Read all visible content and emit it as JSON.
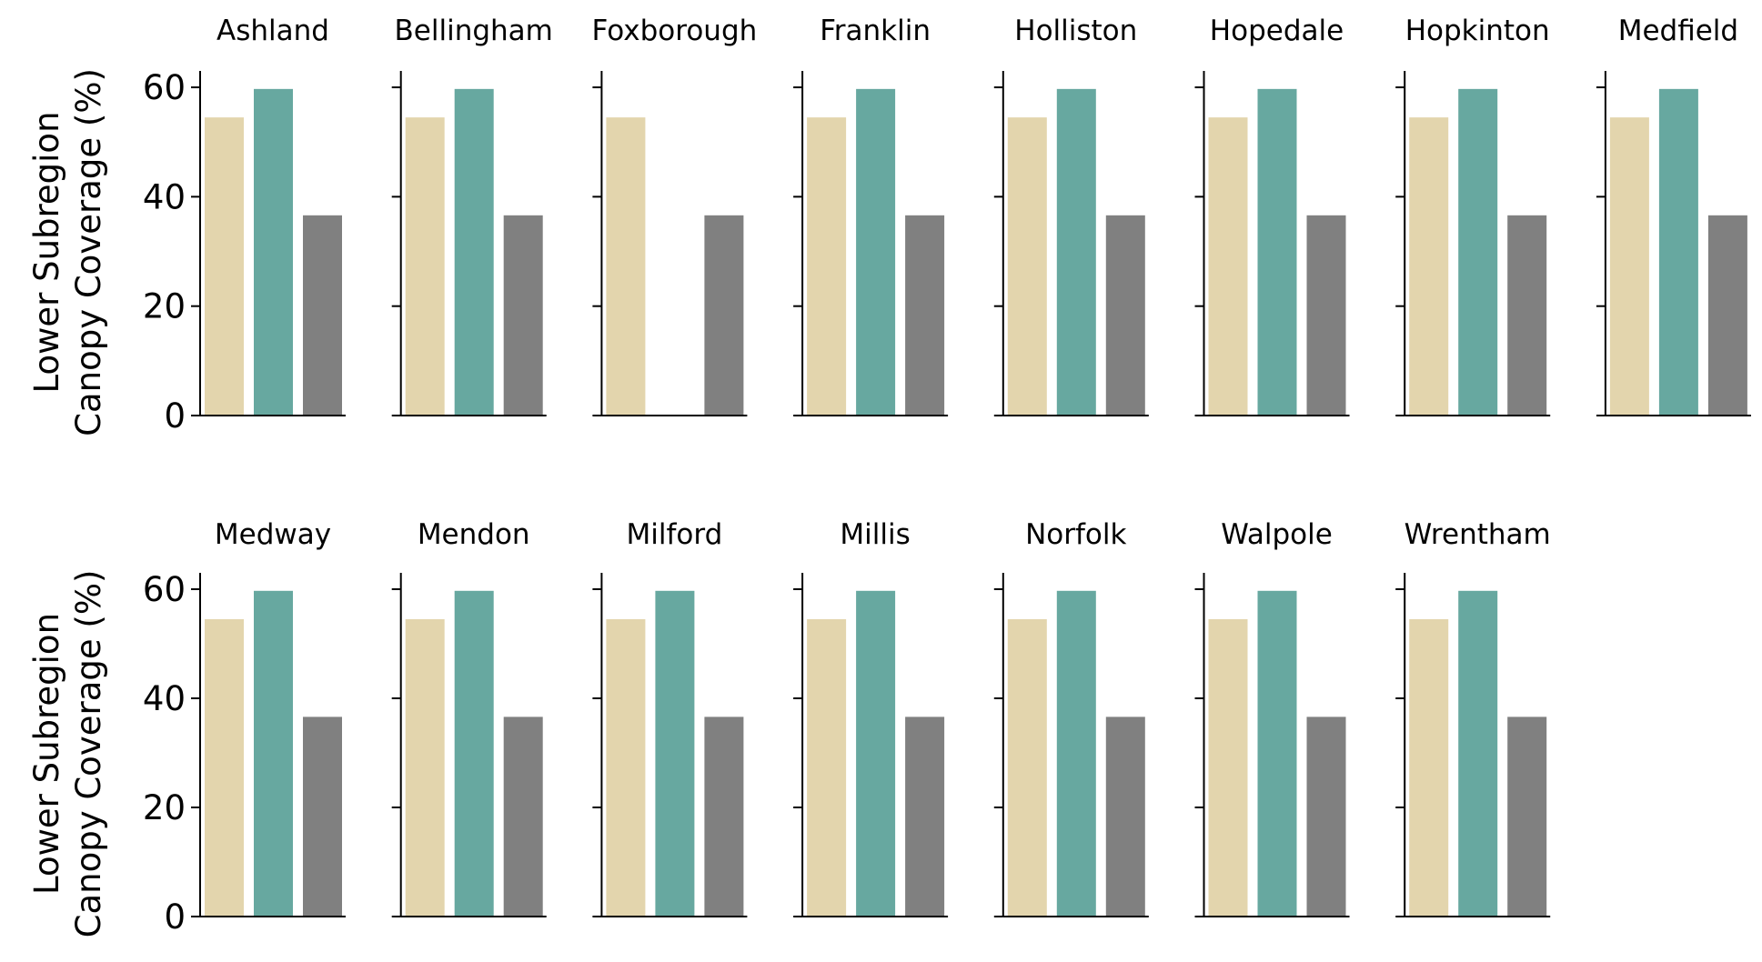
{
  "chart_data": {
    "type": "bar",
    "layout": "small-multiples grid, 2 rows",
    "ylabel_lines": [
      "Lower Subregion",
      "Canopy Coverage (%)"
    ],
    "ylim": [
      0,
      63
    ],
    "yticks": [
      0,
      20,
      40,
      60
    ],
    "grid": false,
    "legend": "none",
    "bar_colors": [
      "#e3d5ad",
      "#67a8a0",
      "#808080"
    ],
    "series_values_default": [
      54.5,
      59.7,
      36.6
    ],
    "panels": [
      {
        "title": "Ashland",
        "values": [
          54.5,
          59.7,
          36.6
        ]
      },
      {
        "title": "Bellingham",
        "values": [
          54.5,
          59.7,
          36.6
        ]
      },
      {
        "title": "Foxborough",
        "values": [
          54.5,
          0,
          36.6
        ]
      },
      {
        "title": "Franklin",
        "values": [
          54.5,
          59.7,
          36.6
        ]
      },
      {
        "title": "Holliston",
        "values": [
          54.5,
          59.7,
          36.6
        ]
      },
      {
        "title": "Hopedale",
        "values": [
          54.5,
          59.7,
          36.6
        ]
      },
      {
        "title": "Hopkinton",
        "values": [
          54.5,
          59.7,
          36.6
        ]
      },
      {
        "title": "Medfield",
        "values": [
          54.5,
          59.7,
          36.6
        ]
      },
      {
        "title": "Medway",
        "values": [
          54.5,
          59.7,
          36.6
        ]
      },
      {
        "title": "Mendon",
        "values": [
          54.5,
          59.7,
          36.6
        ]
      },
      {
        "title": "Milford",
        "values": [
          54.5,
          59.7,
          36.6
        ]
      },
      {
        "title": "Millis",
        "values": [
          54.5,
          59.7,
          36.6
        ]
      },
      {
        "title": "Norfolk",
        "values": [
          54.5,
          59.7,
          36.6
        ]
      },
      {
        "title": "Walpole",
        "values": [
          54.5,
          59.7,
          36.6
        ]
      },
      {
        "title": "Wrentham",
        "values": [
          54.5,
          59.7,
          36.6
        ]
      }
    ]
  }
}
